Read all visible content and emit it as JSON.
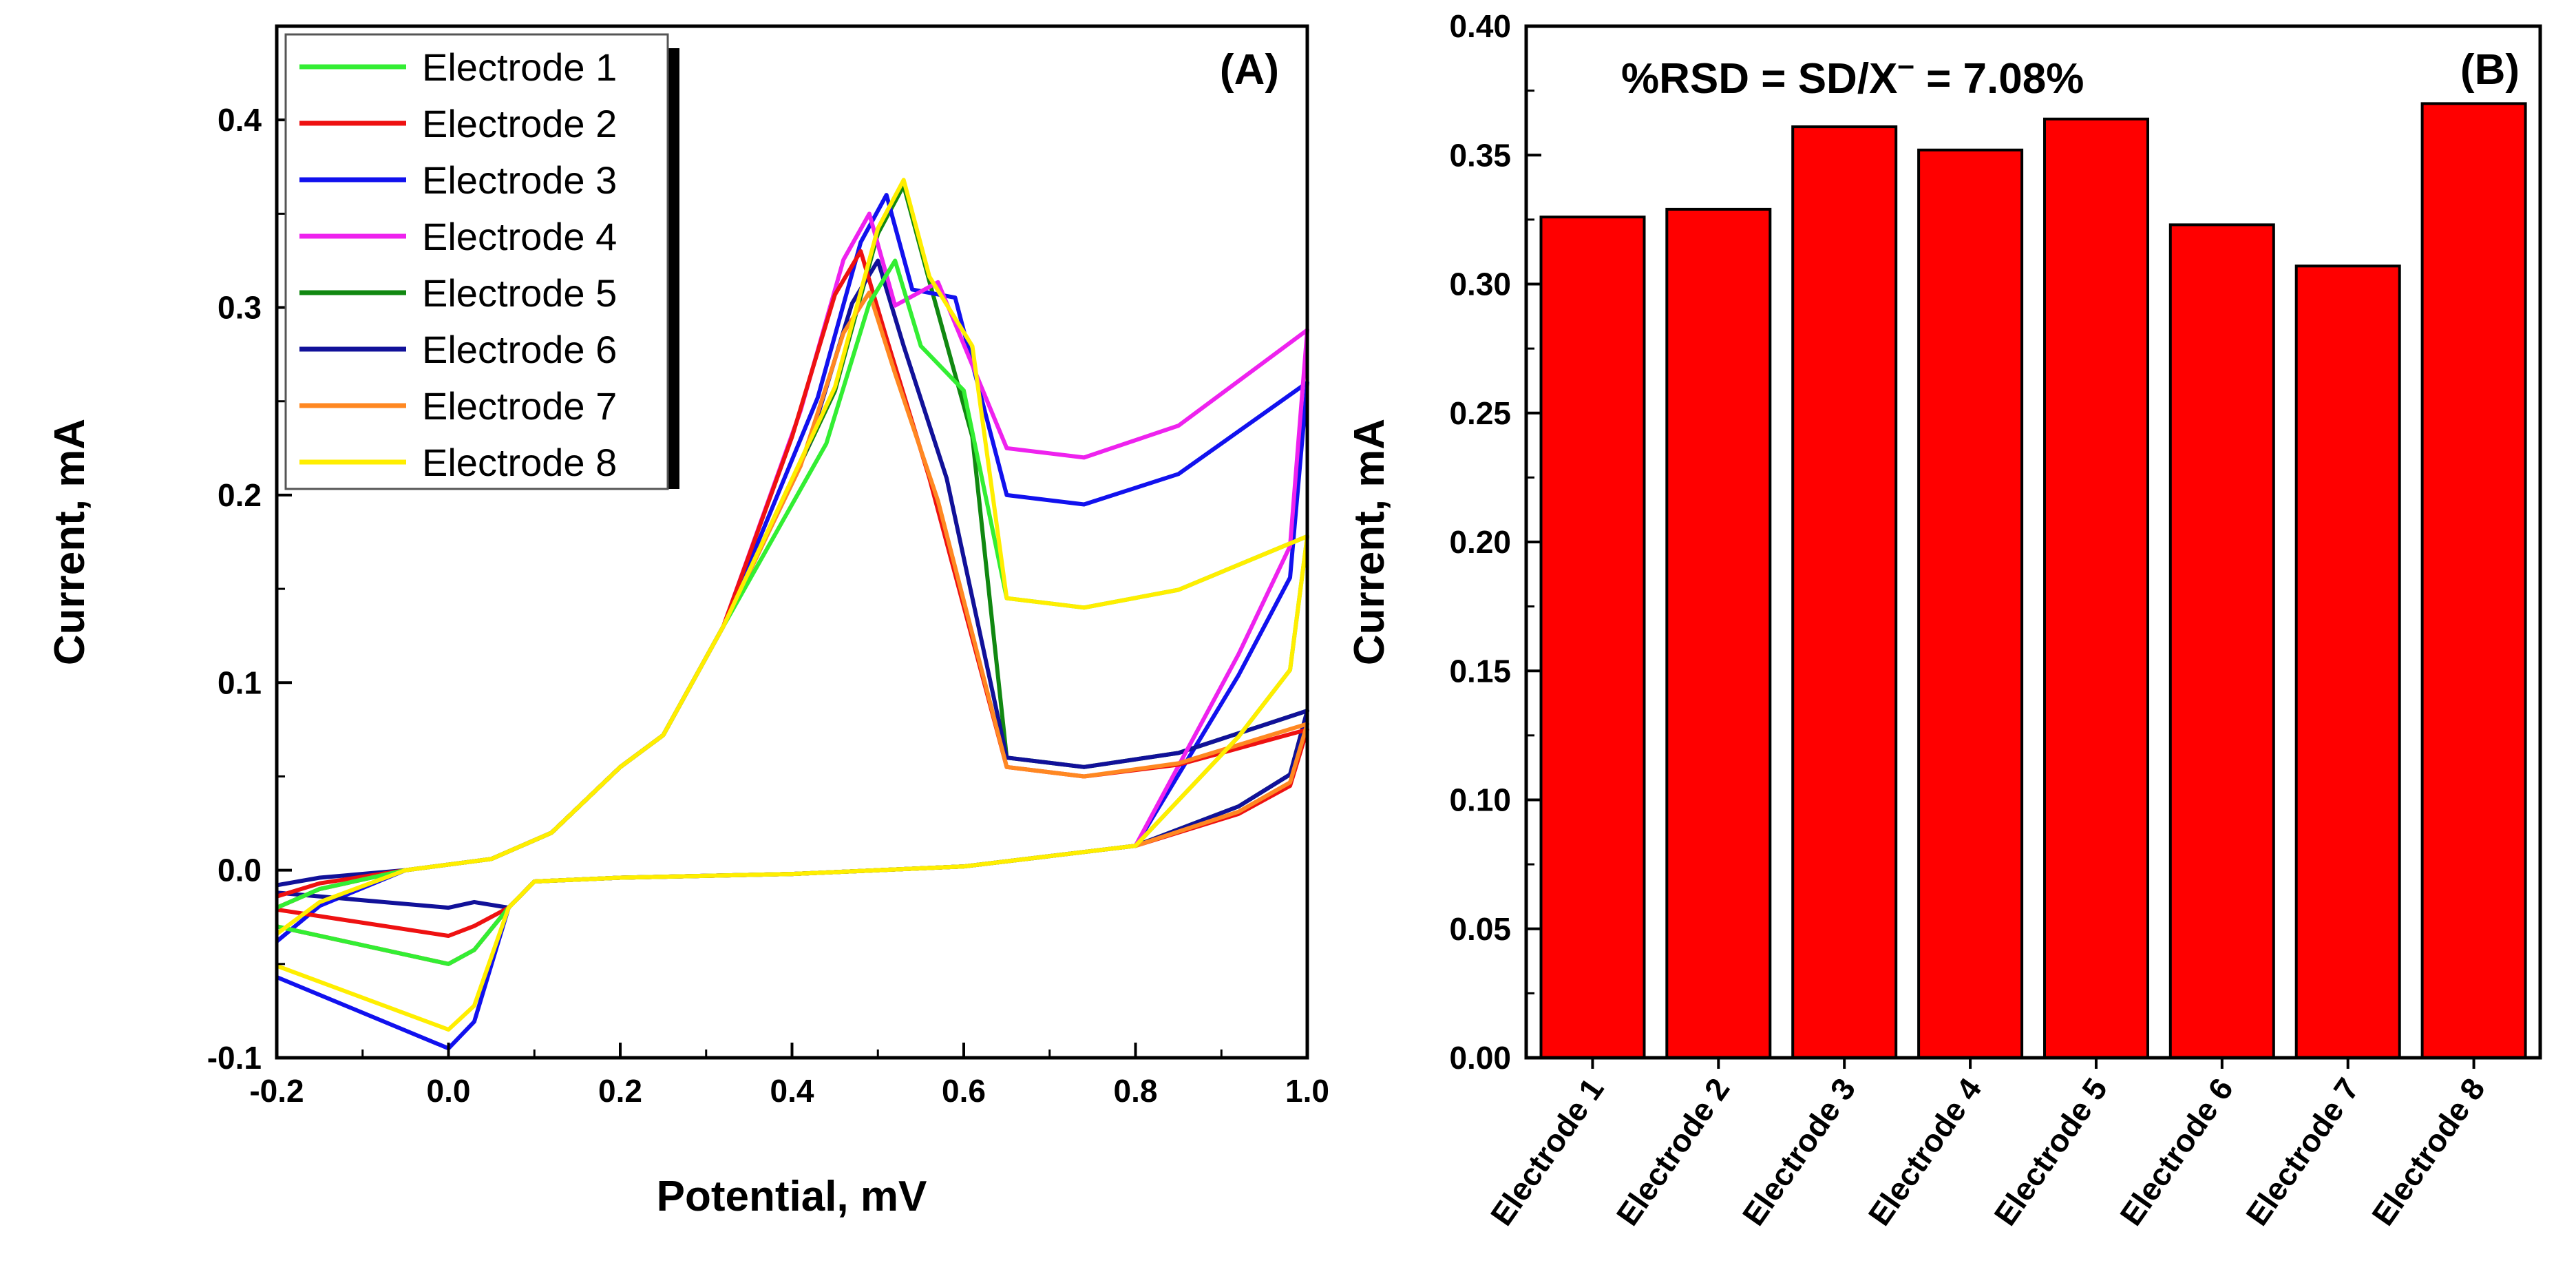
{
  "chart_data": [
    {
      "type": "line",
      "panel_label": "(A)",
      "title": "",
      "xlabel": "Potential, mV",
      "ylabel": "Current, mA",
      "xlim": [
        -0.2,
        1.0
      ],
      "ylim": [
        -0.1,
        0.45
      ],
      "x_ticks": [
        "-0.2",
        "0.0",
        "0.2",
        "0.4",
        "0.6",
        "0.8",
        "1.0"
      ],
      "y_ticks": [
        "-0.1",
        "0.0",
        "0.1",
        "0.2",
        "0.3",
        "0.4"
      ],
      "legend_position": "top-left",
      "series": [
        {
          "name": "Electrode 1",
          "color": "#33ee33",
          "peak_x": 0.52,
          "peak_y": 0.325,
          "vertex_y": 0.178,
          "trough_y": 0.14,
          "min_y": -0.05
        },
        {
          "name": "Electrode 2",
          "color": "#ee1111",
          "peak_x": 0.48,
          "peak_y": 0.33,
          "vertex_y": 0.075,
          "trough_y": 0.05,
          "min_y": -0.035
        },
        {
          "name": "Electrode 3",
          "color": "#1111ee",
          "peak_x": 0.51,
          "peak_y": 0.36,
          "vertex_y": 0.26,
          "trough_y": 0.195,
          "min_y": -0.095
        },
        {
          "name": "Electrode 4",
          "color": "#ee22ee",
          "peak_x": 0.49,
          "peak_y": 0.35,
          "vertex_y": 0.288,
          "trough_y": 0.22,
          "min_y": -0.05
        },
        {
          "name": "Electrode 5",
          "color": "#118811",
          "peak_x": 0.53,
          "peak_y": 0.365,
          "vertex_y": 0.085,
          "trough_y": 0.055,
          "min_y": -0.05
        },
        {
          "name": "Electrode 6",
          "color": "#111199",
          "peak_x": 0.5,
          "peak_y": 0.325,
          "vertex_y": 0.085,
          "trough_y": 0.055,
          "min_y": -0.02
        },
        {
          "name": "Electrode 7",
          "color": "#ff8822",
          "peak_x": 0.49,
          "peak_y": 0.308,
          "vertex_y": 0.078,
          "trough_y": 0.05,
          "min_y": -0.05
        },
        {
          "name": "Electrode 8",
          "color": "#ffee00",
          "peak_x": 0.53,
          "peak_y": 0.368,
          "vertex_y": 0.178,
          "trough_y": 0.14,
          "min_y": -0.085
        }
      ]
    },
    {
      "type": "bar",
      "panel_label": "(B)",
      "title": "",
      "annotation": {
        "prefix": "%RSD = SD/X",
        "sup": "–",
        "suffix": " = 7.08%"
      },
      "xlabel": "",
      "ylabel": "Current, mA",
      "ylim": [
        0.0,
        0.4
      ],
      "y_ticks": [
        "0.00",
        "0.05",
        "0.10",
        "0.15",
        "0.20",
        "0.25",
        "0.30",
        "0.35",
        "0.40"
      ],
      "categories": [
        "Electrode 1",
        "Electrode 2",
        "Electrode 3",
        "Electrode 4",
        "Electrode 5",
        "Electrode 6",
        "Electrode 7",
        "Electrode 8"
      ],
      "values": [
        0.326,
        0.329,
        0.361,
        0.352,
        0.364,
        0.323,
        0.307,
        0.37
      ],
      "bar_color": "#ff0000"
    }
  ]
}
